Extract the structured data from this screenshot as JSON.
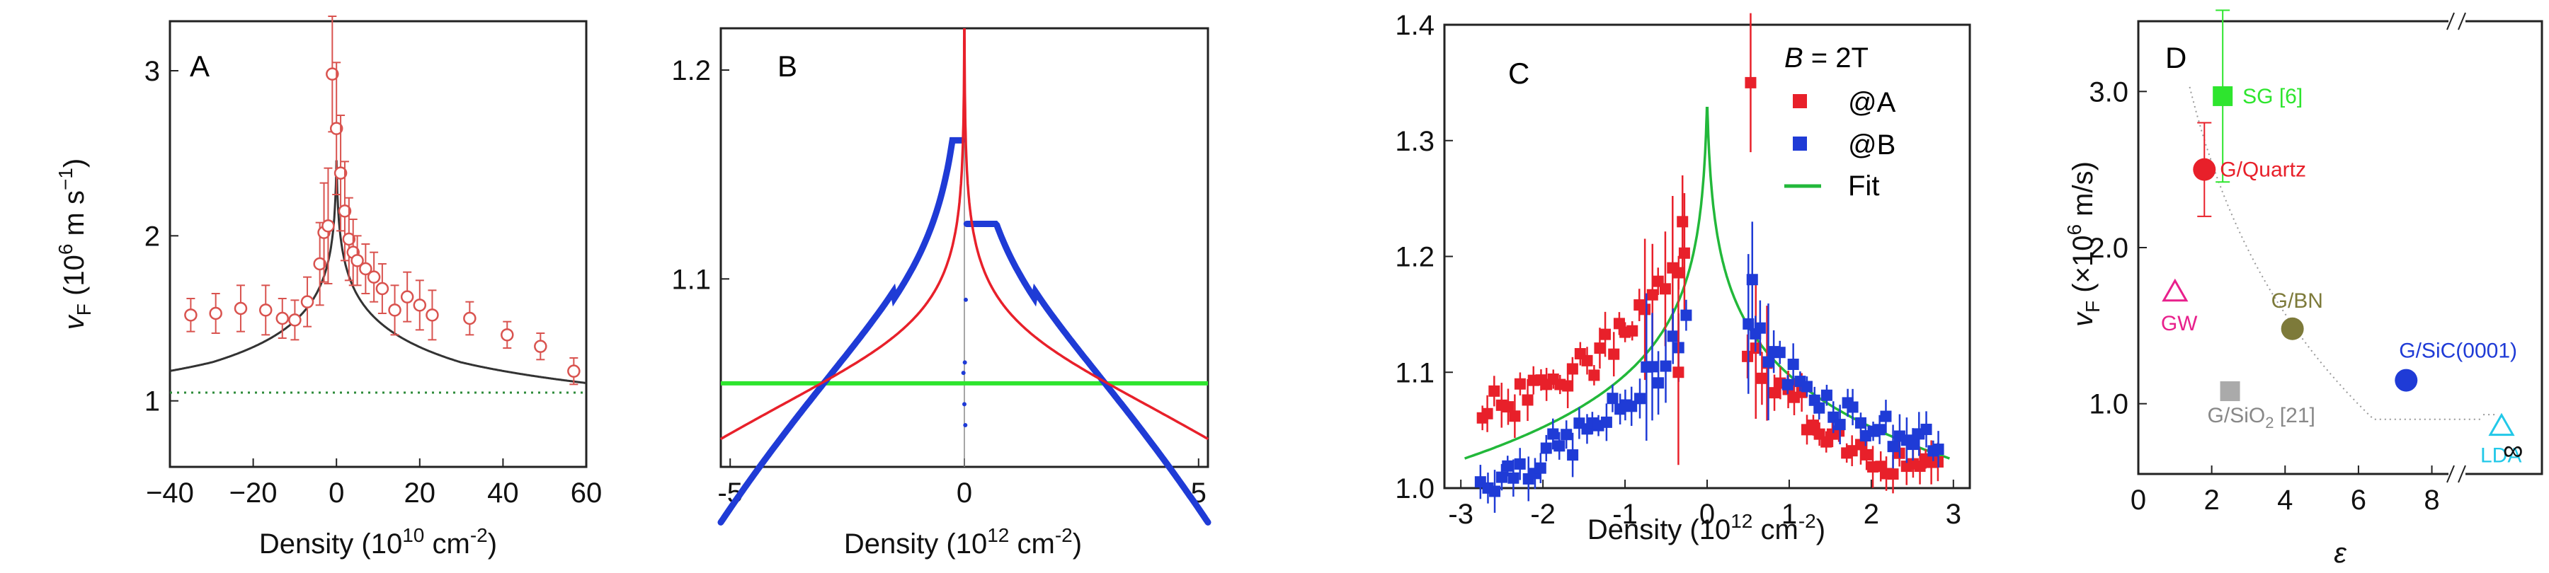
{
  "chart_data": [
    {
      "id": "A",
      "panel_label": "A",
      "type": "scatter",
      "xlabel_main": "Density (10",
      "xlabel_exp": "10",
      "xlabel_end": " cm",
      "xlabel_exp2": "-2",
      "xlabel_close": ")",
      "ylabel": "v",
      "ylabel_sub": "F",
      "ylabel_rest": " (10",
      "ylabel_exp": "6",
      "ylabel_units": " m s",
      "ylabel_exp2": "−1",
      "ylabel_close": ")",
      "xlim": [
        -40,
        60
      ],
      "ylim": [
        0.6,
        3.3
      ],
      "xticks": [
        -40,
        -20,
        0,
        20,
        40,
        60
      ],
      "xtick_labels": [
        "−40",
        "−20",
        "0",
        "20",
        "40",
        "60"
      ],
      "yticks": [
        1,
        2,
        3
      ],
      "ytick_labels": [
        "1",
        "2",
        "3"
      ],
      "series": [
        {
          "name": "data",
          "color": "#d9534f",
          "x": [
            -35,
            -29,
            -23,
            -17,
            -13,
            -10,
            -7,
            -4,
            -3,
            -2,
            -1,
            0,
            1,
            2,
            3,
            4,
            5,
            7,
            9,
            11,
            14,
            17,
            20,
            23,
            32,
            41,
            49,
            57
          ],
          "y": [
            1.52,
            1.53,
            1.56,
            1.55,
            1.5,
            1.49,
            1.6,
            1.83,
            2.02,
            2.06,
            2.98,
            2.65,
            2.38,
            2.15,
            1.98,
            1.9,
            1.85,
            1.8,
            1.75,
            1.68,
            1.55,
            1.63,
            1.58,
            1.52,
            1.5,
            1.4,
            1.33,
            1.18
          ],
          "err": [
            0.1,
            0.12,
            0.14,
            0.15,
            0.12,
            0.12,
            0.15,
            0.25,
            0.3,
            0.35,
            0.35,
            0.4,
            0.35,
            0.3,
            0.25,
            0.2,
            0.15,
            0.15,
            0.15,
            0.15,
            0.15,
            0.15,
            0.15,
            0.15,
            0.1,
            0.08,
            0.08,
            0.08
          ]
        },
        {
          "name": "fit",
          "color": "#333333",
          "kind": "cusp",
          "vf0": 1.4,
          "peak": 3.3
        },
        {
          "name": "baseline",
          "color": "#2e8b3a",
          "kind": "dotted",
          "y": 1.05
        }
      ]
    },
    {
      "id": "B",
      "panel_label": "B",
      "type": "line",
      "xlabel_main": "Density (10",
      "xlabel_exp": "12",
      "xlabel_end": " cm",
      "xlabel_exp2": "-2",
      "xlabel_close": ")",
      "xlim": [
        -5.2,
        5.2
      ],
      "ylim": [
        1.01,
        1.22
      ],
      "xticks": [
        -5,
        0,
        5
      ],
      "xtick_labels": [
        "-5",
        "0",
        "5"
      ],
      "yticks": [
        1.1,
        1.2
      ],
      "ytick_labels": [
        "1.1",
        "1.2"
      ],
      "series": [
        {
          "name": "data",
          "color": "#1f3bd6",
          "kind": "band",
          "base": 1.05,
          "scale": 0.55,
          "peak": 1.165,
          "peak_right": 1.125
        },
        {
          "name": "model",
          "color": "#e8202a",
          "kind": "cusp",
          "base": 1.05,
          "scale": 0.62,
          "peak": 1.22
        },
        {
          "name": "constant",
          "color": "#2ee52e",
          "kind": "hline",
          "y": 1.05
        }
      ]
    },
    {
      "id": "C",
      "panel_label": "C",
      "type": "scatter",
      "xlabel_main": "Density (10",
      "xlabel_exp": "12",
      "xlabel_end": " cm",
      "xlabel_exp2": "-2",
      "xlabel_close": ")",
      "xlim": [
        -3.2,
        3.2
      ],
      "ylim": [
        1.0,
        1.4
      ],
      "xticks": [
        -3,
        -2,
        -1,
        0,
        1,
        2,
        3
      ],
      "xtick_labels": [
        "-3",
        "-2",
        "-1",
        "0",
        "1",
        "2",
        "3"
      ],
      "yticks": [
        1.0,
        1.1,
        1.2,
        1.3,
        1.4
      ],
      "ytick_labels": [
        "1.0",
        "1.1",
        "1.2",
        "1.3",
        "1.4"
      ],
      "legend_title_italic": "B",
      "legend_title_rest": " = 2T",
      "legend_position": "top-right",
      "series": [
        {
          "name": "@A",
          "color": "#e8202a",
          "marker": "square",
          "shift": 0.035,
          "seed": 3
        },
        {
          "name": "@B",
          "color": "#1f3bd6",
          "marker": "square",
          "shift": -0.005,
          "seed": 7
        },
        {
          "name": "Fit",
          "color": "#22b83a",
          "kind": "cusp",
          "base": 1.01,
          "scale": 0.115,
          "peak": 1.4
        }
      ]
    },
    {
      "id": "D",
      "panel_label": "D",
      "type": "scatter",
      "xlabel": "ε",
      "ylabel": "v",
      "ylabel_sub": "F",
      "ylabel_rest": " (×10",
      "ylabel_exp": "6",
      "ylabel_units": " m/s)",
      "xlim": [
        0,
        11
      ],
      "ylim": [
        0.55,
        3.45
      ],
      "xticks": [
        0,
        2,
        4,
        6,
        8
      ],
      "xtick_labels": [
        "0",
        "2",
        "4",
        "6",
        "8"
      ],
      "inf_label": "∞",
      "yticks": [
        1.0,
        2.0,
        3.0
      ],
      "ytick_labels": [
        "1.0",
        "2.0",
        "3.0"
      ],
      "points": [
        {
          "name": "SG [6]",
          "eps": 2.3,
          "vf": 2.97,
          "err": 0.55,
          "color": "#2ee52e",
          "marker": "square"
        },
        {
          "name": "G/Quartz",
          "eps": 1.8,
          "vf": 2.5,
          "err": 0.3,
          "color": "#e8202a",
          "marker": "circle"
        },
        {
          "name": "GW",
          "eps": 1.0,
          "vf": 1.72,
          "color": "#e8208c",
          "marker": "triangle-open"
        },
        {
          "name": "G/BN",
          "eps": 4.2,
          "vf": 1.48,
          "color": "#7d7a3a",
          "marker": "circle"
        },
        {
          "name": "G/SiC(0001)",
          "eps": 7.3,
          "vf": 1.15,
          "color": "#1f3bd6",
          "marker": "circle"
        },
        {
          "name": "G/SiO",
          "name_sub": "2",
          "name_tail": " [21]",
          "eps": 2.5,
          "vf": 1.08,
          "color": "#aaaaaa",
          "marker": "square"
        },
        {
          "name": "LDA",
          "eps": 9.9,
          "vf": 0.86,
          "color": "#22c8e8",
          "marker": "triangle-open"
        }
      ]
    }
  ]
}
